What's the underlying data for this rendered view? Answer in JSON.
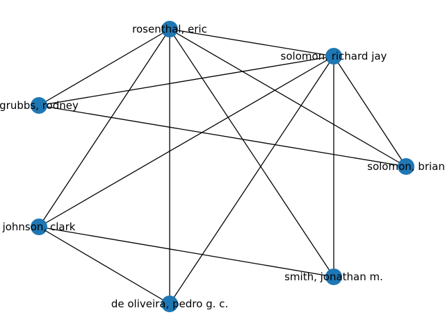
{
  "graph": {
    "node_color": "#1f77b4",
    "edge_color": "#000000",
    "nodes": [
      {
        "id": "rosenthal",
        "label": "rosenthal, eric"
      },
      {
        "id": "solomon_rj",
        "label": "solomon, richard jay"
      },
      {
        "id": "grubbs",
        "label": "grubbs, rodney"
      },
      {
        "id": "solomon_b",
        "label": "solomon, brian"
      },
      {
        "id": "johnson",
        "label": "johnson, clark"
      },
      {
        "id": "smith",
        "label": "smith, jonathan m."
      },
      {
        "id": "deoliveira",
        "label": "de oliveira, pedro g. c."
      }
    ],
    "edges": [
      [
        "rosenthal",
        "solomon_rj"
      ],
      [
        "rosenthal",
        "grubbs"
      ],
      [
        "rosenthal",
        "solomon_b"
      ],
      [
        "rosenthal",
        "johnson"
      ],
      [
        "rosenthal",
        "smith"
      ],
      [
        "rosenthal",
        "deoliveira"
      ],
      [
        "solomon_rj",
        "grubbs"
      ],
      [
        "solomon_rj",
        "solomon_b"
      ],
      [
        "solomon_rj",
        "johnson"
      ],
      [
        "solomon_rj",
        "smith"
      ],
      [
        "solomon_rj",
        "deoliveira"
      ],
      [
        "grubbs",
        "solomon_b"
      ],
      [
        "johnson",
        "smith"
      ],
      [
        "johnson",
        "deoliveira"
      ]
    ]
  }
}
